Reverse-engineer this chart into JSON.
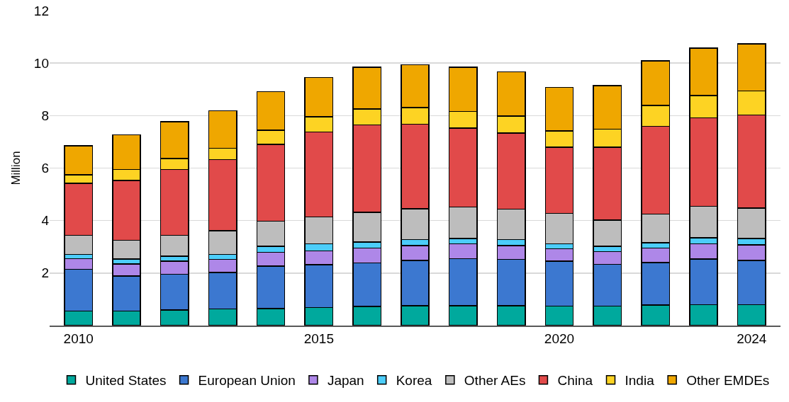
{
  "chart_data": {
    "type": "bar",
    "stacked": true,
    "ylabel": "Million",
    "x": [
      2010,
      2011,
      2012,
      2013,
      2014,
      2015,
      2016,
      2017,
      2018,
      2019,
      2020,
      2021,
      2022,
      2023,
      2024
    ],
    "xlim": [
      2009.4,
      2024.6
    ],
    "xticks": [
      2010,
      2015,
      2020,
      2024
    ],
    "ylim": [
      0,
      12
    ],
    "yticks": [
      2,
      4,
      6,
      8,
      10,
      12
    ],
    "grid": "y",
    "legend": "bottom",
    "series": [
      {
        "name": "United States",
        "color": "#00a99d",
        "values": [
          0.55,
          0.55,
          0.6,
          0.64,
          0.65,
          0.69,
          0.73,
          0.76,
          0.76,
          0.76,
          0.74,
          0.74,
          0.78,
          0.79,
          0.8
        ]
      },
      {
        "name": "European Union",
        "color": "#3c78d0",
        "values": [
          1.59,
          1.34,
          1.36,
          1.38,
          1.62,
          1.63,
          1.66,
          1.72,
          1.79,
          1.76,
          1.71,
          1.59,
          1.62,
          1.74,
          1.68
        ]
      },
      {
        "name": "Japan",
        "color": "#ae87e8",
        "values": [
          0.41,
          0.46,
          0.49,
          0.5,
          0.52,
          0.53,
          0.56,
          0.57,
          0.57,
          0.53,
          0.47,
          0.49,
          0.55,
          0.58,
          0.59
        ]
      },
      {
        "name": "Korea",
        "color": "#4ccdfa",
        "values": [
          0.16,
          0.18,
          0.19,
          0.19,
          0.23,
          0.26,
          0.23,
          0.22,
          0.2,
          0.22,
          0.19,
          0.2,
          0.2,
          0.24,
          0.25
        ]
      },
      {
        "name": "Other AEs",
        "color": "#bdbdbd",
        "values": [
          0.73,
          0.72,
          0.8,
          0.9,
          0.96,
          1.03,
          1.14,
          1.18,
          1.2,
          1.16,
          1.16,
          1.0,
          1.1,
          1.19,
          1.15
        ]
      },
      {
        "name": "China",
        "color": "#e14a4a",
        "values": [
          1.98,
          2.28,
          2.51,
          2.72,
          2.93,
          3.24,
          3.32,
          3.22,
          3.0,
          2.91,
          2.52,
          2.77,
          3.34,
          3.37,
          3.55
        ]
      },
      {
        "name": "India",
        "color": "#fdd323",
        "values": [
          0.33,
          0.42,
          0.42,
          0.43,
          0.53,
          0.57,
          0.61,
          0.63,
          0.64,
          0.64,
          0.63,
          0.7,
          0.8,
          0.86,
          0.92
        ]
      },
      {
        "name": "Other EMDEs",
        "color": "#efa700",
        "values": [
          1.1,
          1.32,
          1.4,
          1.43,
          1.47,
          1.5,
          1.59,
          1.64,
          1.68,
          1.69,
          1.66,
          1.65,
          1.69,
          1.8,
          1.79
        ]
      }
    ]
  }
}
